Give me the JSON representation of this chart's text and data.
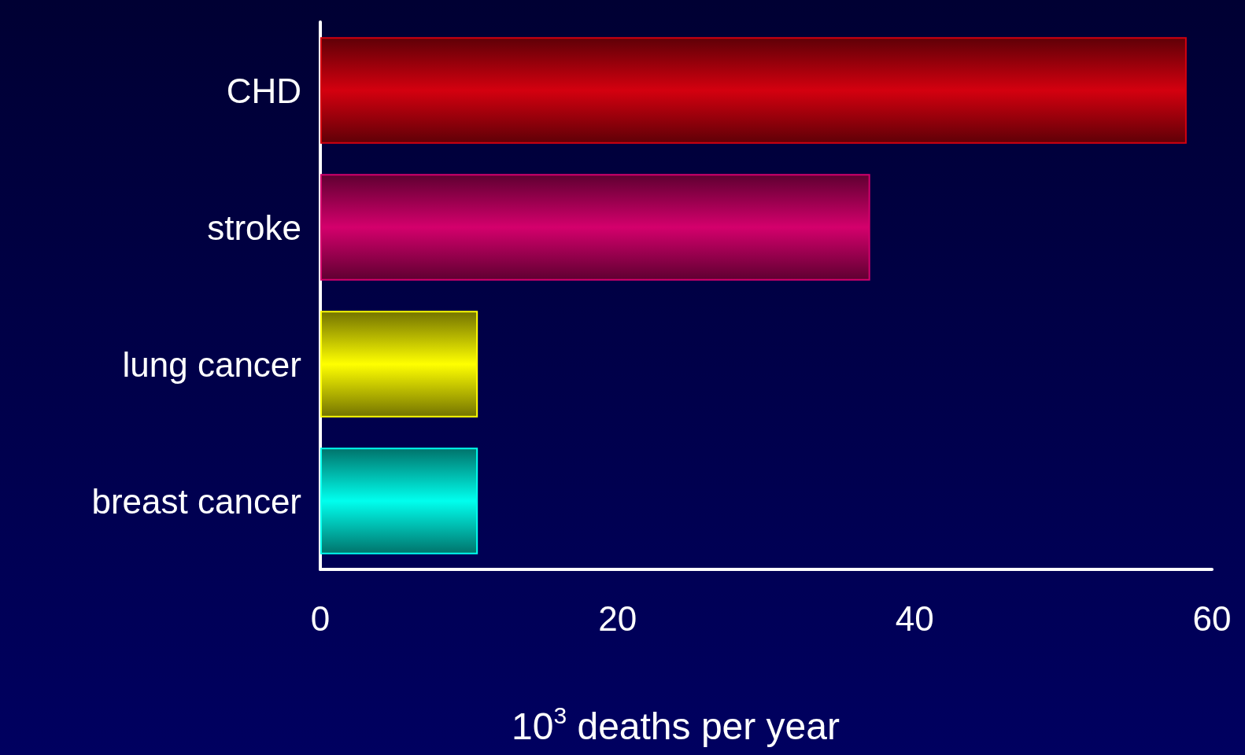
{
  "chart_data": {
    "type": "bar",
    "orientation": "horizontal",
    "categories": [
      "CHD",
      "stroke",
      "lung cancer",
      "breast cancer"
    ],
    "values": [
      58.3,
      37,
      10.6,
      10.6
    ],
    "colors": [
      "#d4000f",
      "#d4006c",
      "#ffff00",
      "#00ffee"
    ],
    "xlabel": "10$^{3}$ deaths per year",
    "xlim": [
      0,
      60
    ],
    "xticks": [
      0,
      20,
      40,
      60
    ]
  }
}
